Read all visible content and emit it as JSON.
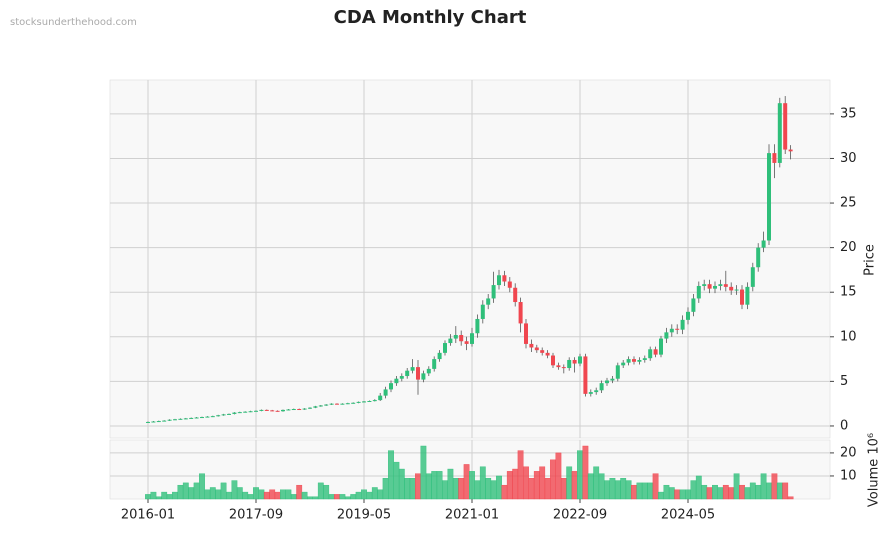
{
  "chart_data": {
    "type": "candlestick",
    "title": "CDA Monthly Chart",
    "watermark": "stocksunderthehood.com",
    "ylabel": "Price",
    "y2label": "Volume  10⁶",
    "up_color": "#2fbf7a",
    "down_color": "#f0464f",
    "grid": true,
    "x": [
      "2016-01",
      "2016-02",
      "2016-03",
      "2016-04",
      "2016-05",
      "2016-06",
      "2016-07",
      "2016-08",
      "2016-09",
      "2016-10",
      "2016-11",
      "2016-12",
      "2017-01",
      "2017-02",
      "2017-03",
      "2017-04",
      "2017-05",
      "2017-06",
      "2017-07",
      "2017-08",
      "2017-09",
      "2017-10",
      "2017-11",
      "2017-12",
      "2018-01",
      "2018-02",
      "2018-03",
      "2018-04",
      "2018-05",
      "2018-06",
      "2018-07",
      "2018-08",
      "2018-09",
      "2018-10",
      "2018-11",
      "2018-12",
      "2019-01",
      "2019-02",
      "2019-03",
      "2019-04",
      "2019-05",
      "2019-06",
      "2019-07",
      "2019-08",
      "2019-09",
      "2019-10",
      "2019-11",
      "2019-12",
      "2020-01",
      "2020-02",
      "2020-03",
      "2020-04",
      "2020-05",
      "2020-06",
      "2020-07",
      "2020-08",
      "2020-09",
      "2020-10",
      "2020-11",
      "2020-12",
      "2021-01",
      "2021-02",
      "2021-03",
      "2021-04",
      "2021-05",
      "2021-06",
      "2021-07",
      "2021-08",
      "2021-09",
      "2021-10",
      "2021-11",
      "2021-12",
      "2022-01",
      "2022-02",
      "2022-03",
      "2022-04",
      "2022-05",
      "2022-06",
      "2022-07",
      "2022-08",
      "2022-09",
      "2022-10",
      "2022-11",
      "2022-12",
      "2023-01",
      "2023-02",
      "2023-03",
      "2023-04",
      "2023-05",
      "2023-06",
      "2023-07",
      "2023-08",
      "2023-09",
      "2023-10",
      "2023-11",
      "2023-12",
      "2024-01",
      "2024-02",
      "2024-03",
      "2024-04",
      "2024-05",
      "2024-06",
      "2024-07",
      "2024-08",
      "2024-09",
      "2024-10",
      "2024-11",
      "2024-12",
      "2025-01",
      "2025-02",
      "2025-03",
      "2025-04",
      "2025-05",
      "2025-06",
      "2025-07",
      "2025-08",
      "2025-09",
      "2025-10",
      "2025-11",
      "2025-12"
    ],
    "open": [
      0.4,
      0.45,
      0.5,
      0.55,
      0.6,
      0.7,
      0.75,
      0.8,
      0.85,
      0.9,
      0.95,
      1.0,
      1.05,
      1.1,
      1.2,
      1.3,
      1.35,
      1.5,
      1.55,
      1.6,
      1.65,
      1.7,
      1.8,
      1.75,
      1.7,
      1.65,
      1.8,
      1.85,
      1.9,
      1.85,
      1.95,
      2.05,
      2.2,
      2.3,
      2.4,
      2.5,
      2.45,
      2.5,
      2.55,
      2.6,
      2.7,
      2.75,
      2.8,
      2.9,
      3.4,
      4.1,
      4.8,
      5.3,
      5.6,
      6.2,
      6.6,
      5.2,
      5.9,
      6.4,
      7.5,
      8.2,
      9.3,
      9.8,
      10.2,
      9.5,
      9.2,
      10.4,
      12.0,
      13.6,
      14.3,
      15.8,
      16.9,
      16.2,
      15.5,
      13.9,
      11.5,
      9.2,
      8.8,
      8.5,
      8.2,
      7.9,
      6.8,
      6.6,
      6.5,
      7.4,
      7.0,
      7.8,
      3.6,
      3.8,
      4.0,
      4.8,
      5.1,
      5.3,
      6.8,
      7.1,
      7.5,
      7.2,
      7.4,
      7.6,
      8.6,
      8.0,
      9.8,
      10.5,
      10.9,
      10.8,
      11.9,
      12.8,
      14.3,
      15.7,
      15.9,
      15.4,
      15.7,
      15.9,
      15.6,
      15.2,
      15.3,
      13.6,
      15.6,
      17.8,
      20.0,
      20.8,
      30.6,
      29.5,
      36.2,
      31.0
    ],
    "high": [
      0.5,
      0.55,
      0.6,
      0.65,
      0.75,
      0.8,
      0.85,
      0.9,
      0.95,
      1.0,
      1.05,
      1.1,
      1.15,
      1.25,
      1.35,
      1.4,
      1.55,
      1.6,
      1.65,
      1.7,
      1.75,
      1.85,
      1.85,
      1.8,
      1.75,
      1.85,
      1.9,
      1.95,
      1.95,
      2.0,
      2.1,
      2.25,
      2.35,
      2.45,
      2.55,
      2.55,
      2.55,
      2.6,
      2.65,
      2.75,
      2.8,
      2.85,
      3.0,
      3.7,
      4.4,
      5.1,
      5.6,
      5.9,
      6.5,
      7.5,
      7.4,
      6.2,
      6.7,
      7.8,
      8.5,
      9.6,
      10.3,
      11.2,
      10.7,
      10.0,
      11.0,
      12.5,
      14.1,
      14.8,
      17.3,
      17.5,
      17.4,
      16.7,
      16.0,
      14.4,
      12.0,
      9.7,
      9.1,
      8.8,
      8.5,
      8.2,
      7.1,
      6.9,
      7.7,
      7.7,
      8.1,
      8.1,
      4.1,
      4.3,
      5.1,
      5.4,
      5.6,
      7.1,
      7.4,
      7.8,
      7.8,
      7.7,
      7.9,
      8.9,
      8.9,
      10.1,
      11.0,
      11.4,
      11.4,
      12.4,
      13.3,
      14.8,
      16.2,
      16.4,
      16.4,
      16.2,
      16.4,
      17.4,
      16.1,
      15.8,
      15.8,
      16.1,
      18.3,
      20.5,
      21.8,
      31.6,
      31.6,
      36.8,
      37.0,
      31.5
    ],
    "low": [
      0.35,
      0.4,
      0.45,
      0.5,
      0.55,
      0.65,
      0.7,
      0.75,
      0.8,
      0.85,
      0.9,
      0.95,
      1.0,
      1.05,
      1.15,
      1.25,
      1.3,
      1.45,
      1.5,
      1.55,
      1.6,
      1.65,
      1.7,
      1.65,
      1.6,
      1.6,
      1.75,
      1.8,
      1.8,
      1.8,
      1.9,
      2.0,
      2.15,
      2.25,
      2.35,
      2.4,
      2.4,
      2.45,
      2.5,
      2.55,
      2.65,
      2.7,
      2.75,
      2.8,
      3.1,
      3.8,
      4.5,
      5.0,
      5.3,
      5.9,
      3.5,
      4.9,
      5.6,
      6.1,
      7.2,
      7.9,
      9.0,
      9.3,
      9.0,
      8.5,
      8.9,
      9.9,
      11.5,
      13.1,
      13.8,
      15.3,
      15.7,
      15.0,
      13.4,
      10.5,
      8.7,
      8.3,
      8.2,
      7.9,
      7.6,
      6.5,
      6.3,
      5.9,
      6.2,
      6.0,
      6.7,
      3.3,
      3.3,
      3.5,
      3.7,
      4.5,
      4.8,
      5.0,
      6.5,
      6.8,
      6.9,
      6.9,
      7.1,
      7.3,
      7.7,
      7.7,
      9.3,
      10.0,
      10.3,
      10.3,
      11.4,
      12.3,
      13.8,
      15.2,
      14.9,
      14.9,
      15.2,
      15.1,
      14.7,
      14.7,
      13.1,
      13.1,
      15.1,
      17.3,
      19.5,
      20.3,
      27.8,
      29.0,
      30.5,
      29.9
    ],
    "close": [
      0.45,
      0.5,
      0.55,
      0.6,
      0.7,
      0.75,
      0.8,
      0.85,
      0.9,
      0.95,
      1.0,
      1.05,
      1.1,
      1.2,
      1.3,
      1.35,
      1.5,
      1.55,
      1.6,
      1.65,
      1.7,
      1.8,
      1.75,
      1.7,
      1.65,
      1.8,
      1.85,
      1.9,
      1.85,
      1.95,
      2.05,
      2.2,
      2.3,
      2.4,
      2.5,
      2.45,
      2.5,
      2.55,
      2.6,
      2.7,
      2.75,
      2.8,
      2.9,
      3.4,
      4.1,
      4.8,
      5.3,
      5.6,
      6.2,
      6.6,
      5.2,
      5.9,
      6.4,
      7.5,
      8.2,
      9.3,
      9.8,
      10.2,
      9.5,
      9.2,
      10.4,
      12.0,
      13.6,
      14.3,
      15.8,
      16.9,
      16.2,
      15.5,
      13.9,
      11.5,
      9.2,
      8.8,
      8.5,
      8.2,
      7.9,
      6.8,
      6.6,
      6.5,
      7.4,
      7.0,
      7.8,
      3.6,
      3.8,
      4.0,
      4.8,
      5.1,
      5.3,
      6.8,
      7.1,
      7.5,
      7.2,
      7.4,
      7.6,
      8.6,
      8.0,
      9.8,
      10.5,
      10.9,
      10.8,
      11.9,
      12.8,
      14.3,
      15.7,
      15.9,
      15.4,
      15.7,
      15.9,
      15.6,
      15.2,
      15.3,
      13.6,
      15.6,
      17.8,
      20.0,
      20.8,
      30.6,
      29.5,
      36.2,
      31.0,
      30.8
    ],
    "volume": [
      2,
      3,
      1,
      3,
      2,
      3,
      6,
      7,
      5,
      7,
      11,
      4,
      5,
      4,
      7,
      3,
      8,
      5,
      3,
      2,
      5,
      4,
      3,
      4,
      3,
      4,
      4,
      2,
      6,
      3,
      1,
      1,
      7,
      6,
      2,
      2,
      2,
      1,
      2,
      3,
      4,
      3,
      5,
      4,
      9,
      21,
      16,
      13,
      9,
      9,
      11,
      23,
      11,
      12,
      12,
      8,
      13,
      9,
      9,
      15,
      12,
      8,
      14,
      9,
      8,
      10,
      6,
      12,
      13,
      21,
      14,
      9,
      12,
      14,
      9,
      17,
      20,
      9,
      14,
      12,
      21,
      23,
      11,
      14,
      11,
      8,
      9,
      8,
      9,
      8,
      6,
      7,
      7,
      7,
      11,
      3,
      6,
      5,
      4,
      4,
      4,
      8,
      10,
      6,
      5,
      6,
      5,
      6,
      5,
      11,
      6,
      5,
      7,
      6,
      11,
      7,
      11,
      7,
      7,
      1
    ],
    "xticks": [
      "2016-01",
      "2017-09",
      "2019-05",
      "2021-01",
      "2022-09",
      "2024-05"
    ],
    "ylim": [
      -1.35,
      38.8
    ],
    "yticks": [
      0,
      5,
      10,
      15,
      20,
      25,
      30,
      35
    ],
    "y2lim": [
      0,
      25.6
    ],
    "y2ticks": [
      10,
      20
    ]
  }
}
